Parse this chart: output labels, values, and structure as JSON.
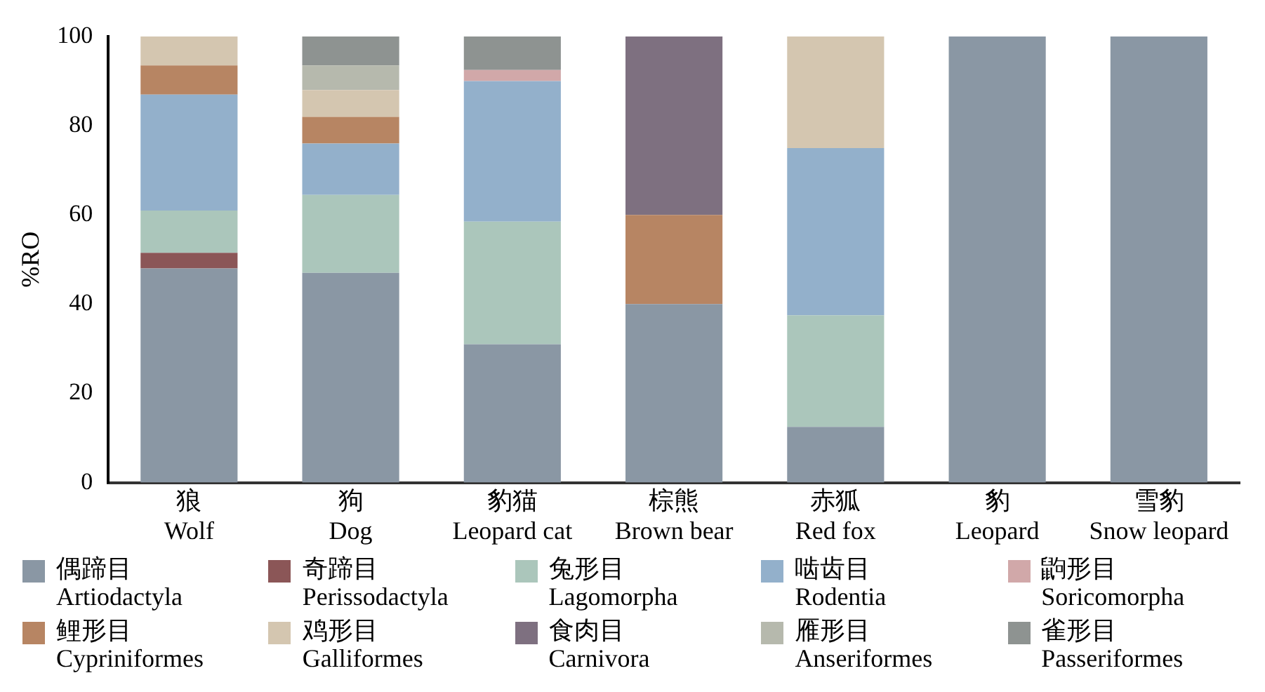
{
  "chart_data": {
    "type": "bar",
    "stacked": true,
    "ylabel": "%RO",
    "ylim": [
      0,
      100
    ],
    "yticks": [
      0,
      20,
      40,
      60,
      80,
      100
    ],
    "grid": false,
    "legend": "bottom",
    "categories": [
      "狼\nWolf",
      "狗\nDog",
      "豹猫\nLeopard cat",
      "棕熊\nBrown bear",
      "赤狐\nRed fox",
      "豹\nLeopard",
      "雪豹\nSnow leopard"
    ],
    "series": [
      {
        "name": "偶蹄目\nArtiodactyla",
        "color": "#8a97a4",
        "values": [
          48,
          47,
          31,
          40,
          12.5,
          100,
          100
        ]
      },
      {
        "name": "奇蹄目\nPerissodactyla",
        "color": "#8b5657",
        "values": [
          3.5,
          0,
          0,
          0,
          0,
          0,
          0
        ]
      },
      {
        "name": "兔形目\nLagomorpha",
        "color": "#abc6bb",
        "values": [
          9.5,
          17.5,
          27.5,
          0,
          25,
          0,
          0
        ]
      },
      {
        "name": "啮齿目\nRodentia",
        "color": "#93b0cb",
        "values": [
          26,
          11.5,
          31.5,
          0,
          37.5,
          0,
          0
        ]
      },
      {
        "name": "鼩形目\nSoricomorpha",
        "color": "#d1a8a9",
        "values": [
          0,
          0,
          2.5,
          0,
          0,
          0,
          0
        ]
      },
      {
        "name": "鲤形目\nCypriniformes",
        "color": "#b78563",
        "values": [
          6.5,
          6,
          0,
          20,
          0,
          0,
          0
        ]
      },
      {
        "name": "鸡形目\nGalliformes",
        "color": "#d4c6b0",
        "values": [
          6.5,
          6,
          0,
          0,
          25,
          0,
          0
        ]
      },
      {
        "name": "食肉目\nCarnivora",
        "color": "#7e7080",
        "values": [
          0,
          0,
          0,
          40,
          0,
          0,
          0
        ]
      },
      {
        "name": "雁形目\nAnseriformes",
        "color": "#b6b9ad",
        "values": [
          0,
          5.5,
          0,
          0,
          0,
          0,
          0
        ]
      },
      {
        "name": "雀形目\nPasseriformes",
        "color": "#8e9391",
        "values": [
          0,
          6.5,
          7.5,
          0,
          0,
          0,
          0
        ]
      }
    ]
  }
}
